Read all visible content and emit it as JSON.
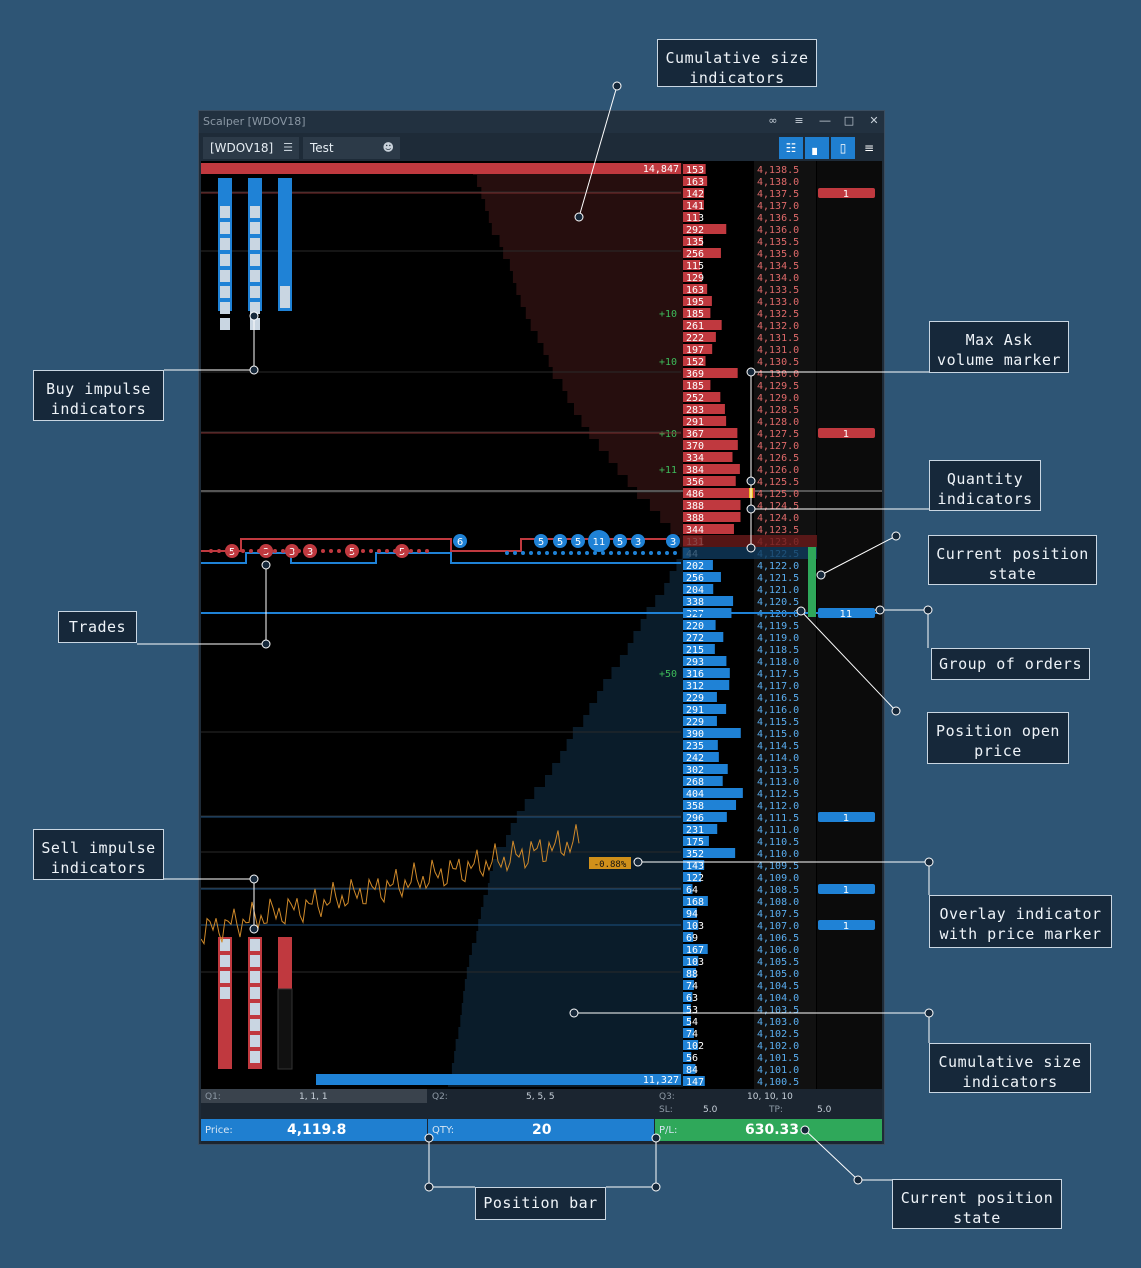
{
  "window": {
    "title": "Scalper [WDOV18]",
    "symbol": "[WDOV18]",
    "account": "Test",
    "icons": [
      "link-icon",
      "menu-icon",
      "minimize-icon",
      "maximize-icon",
      "close-icon"
    ],
    "toolbar_icons": [
      "dom-view-icon",
      "cluster-icon",
      "mouse-icon",
      "settings-menu-icon"
    ]
  },
  "ladder": {
    "top_cumulative": "14,847",
    "bottom_cumulative": "11,327",
    "position_group_label": "11",
    "overlay_marker": "-0.88%",
    "ask_rows": [
      {
        "price": "4,138.5",
        "vol": "153"
      },
      {
        "price": "4,138.0",
        "vol": "163"
      },
      {
        "price": "4,137.5",
        "vol": "142"
      },
      {
        "price": "4,137.0",
        "vol": "141"
      },
      {
        "price": "4,136.5",
        "vol": "113"
      },
      {
        "price": "4,136.0",
        "vol": "292"
      },
      {
        "price": "4,135.5",
        "vol": "135"
      },
      {
        "price": "4,135.0",
        "vol": "256"
      },
      {
        "price": "4,134.5",
        "vol": "115"
      },
      {
        "price": "4,134.0",
        "vol": "129"
      },
      {
        "price": "4,133.5",
        "vol": "163"
      },
      {
        "price": "4,133.0",
        "vol": "195"
      },
      {
        "price": "4,132.5",
        "vol": "185"
      },
      {
        "price": "4,132.0",
        "vol": "261"
      },
      {
        "price": "4,131.5",
        "vol": "222"
      },
      {
        "price": "4,131.0",
        "vol": "197"
      },
      {
        "price": "4,130.5",
        "vol": "152"
      },
      {
        "price": "4,130.0",
        "vol": "369"
      },
      {
        "price": "4,129.5",
        "vol": "185"
      },
      {
        "price": "4,129.0",
        "vol": "252"
      },
      {
        "price": "4,128.5",
        "vol": "283"
      },
      {
        "price": "4,128.0",
        "vol": "291"
      },
      {
        "price": "4,127.5",
        "vol": "367"
      },
      {
        "price": "4,127.0",
        "vol": "370"
      },
      {
        "price": "4,126.5",
        "vol": "334"
      },
      {
        "price": "4,126.0",
        "vol": "384"
      },
      {
        "price": "4,125.5",
        "vol": "356"
      },
      {
        "price": "4,125.0",
        "vol": "486"
      },
      {
        "price": "4,124.5",
        "vol": "388"
      },
      {
        "price": "4,124.0",
        "vol": "388"
      },
      {
        "price": "4,123.5",
        "vol": "344"
      },
      {
        "price": "4,123.0",
        "vol": "131"
      }
    ],
    "bid_rows": [
      {
        "price": "4,122.5",
        "vol": "44"
      },
      {
        "price": "4,122.0",
        "vol": "202"
      },
      {
        "price": "4,121.5",
        "vol": "256"
      },
      {
        "price": "4,121.0",
        "vol": "204"
      },
      {
        "price": "4,120.5",
        "vol": "338"
      },
      {
        "price": "4,120.0",
        "vol": "327"
      },
      {
        "price": "4,119.5",
        "vol": "220"
      },
      {
        "price": "4,119.0",
        "vol": "272"
      },
      {
        "price": "4,118.5",
        "vol": "215"
      },
      {
        "price": "4,118.0",
        "vol": "293"
      },
      {
        "price": "4,117.5",
        "vol": "316"
      },
      {
        "price": "4,117.0",
        "vol": "312"
      },
      {
        "price": "4,116.5",
        "vol": "229"
      },
      {
        "price": "4,116.0",
        "vol": "291"
      },
      {
        "price": "4,115.5",
        "vol": "229"
      },
      {
        "price": "4,115.0",
        "vol": "390"
      },
      {
        "price": "4,114.5",
        "vol": "235"
      },
      {
        "price": "4,114.0",
        "vol": "242"
      },
      {
        "price": "4,113.5",
        "vol": "302"
      },
      {
        "price": "4,113.0",
        "vol": "268"
      },
      {
        "price": "4,112.5",
        "vol": "404"
      },
      {
        "price": "4,112.0",
        "vol": "358"
      },
      {
        "price": "4,111.5",
        "vol": "296"
      },
      {
        "price": "4,111.0",
        "vol": "231"
      },
      {
        "price": "4,110.5",
        "vol": "175"
      },
      {
        "price": "4,110.0",
        "vol": "352"
      },
      {
        "price": "4,109.5",
        "vol": "143"
      },
      {
        "price": "4,109.0",
        "vol": "122"
      },
      {
        "price": "4,108.5",
        "vol": "64"
      },
      {
        "price": "4,108.0",
        "vol": "168"
      },
      {
        "price": "4,107.5",
        "vol": "94"
      },
      {
        "price": "4,107.0",
        "vol": "103"
      },
      {
        "price": "4,106.5",
        "vol": "69"
      },
      {
        "price": "4,106.0",
        "vol": "167"
      },
      {
        "price": "4,105.5",
        "vol": "103"
      },
      {
        "price": "4,105.0",
        "vol": "88"
      },
      {
        "price": "4,104.5",
        "vol": "74"
      },
      {
        "price": "4,104.0",
        "vol": "63"
      },
      {
        "price": "4,103.5",
        "vol": "53"
      },
      {
        "price": "4,103.0",
        "vol": "54"
      },
      {
        "price": "4,102.5",
        "vol": "74"
      },
      {
        "price": "4,102.0",
        "vol": "102"
      },
      {
        "price": "4,101.5",
        "vol": "56"
      },
      {
        "price": "4,101.0",
        "vol": "84"
      },
      {
        "price": "4,100.5",
        "vol": "147"
      }
    ],
    "deltas": [
      {
        "price": "4,132.5",
        "text": "+10"
      },
      {
        "price": "4,130.5",
        "text": "+10"
      },
      {
        "price": "4,127.5",
        "text": "+10"
      },
      {
        "price": "4,126.0",
        "text": "+11"
      },
      {
        "price": "4,117.5",
        "text": "+50"
      }
    ],
    "orders": [
      {
        "price": "4,137.5",
        "qty": "1",
        "side": "sell"
      },
      {
        "price": "4,127.5",
        "qty": "1",
        "side": "sell"
      },
      {
        "price": "4,111.5",
        "qty": "1",
        "side": "buy"
      },
      {
        "price": "4,108.5",
        "qty": "1",
        "side": "buy"
      },
      {
        "price": "4,107.0",
        "qty": "1",
        "side": "buy"
      }
    ],
    "trades": [
      {
        "label": "5",
        "side": "sell"
      },
      {
        "label": "3",
        "side": "sell"
      },
      {
        "label": "3",
        "side": "sell"
      },
      {
        "label": "3",
        "side": "sell"
      },
      {
        "label": "5",
        "side": "sell"
      },
      {
        "label": "5",
        "side": "sell"
      },
      {
        "label": "6",
        "side": "buy"
      },
      {
        "label": "5",
        "side": "buy"
      },
      {
        "label": "5",
        "side": "buy"
      },
      {
        "label": "5",
        "side": "buy"
      },
      {
        "label": "11",
        "side": "buy"
      },
      {
        "label": "5",
        "side": "buy"
      },
      {
        "label": "3",
        "side": "buy"
      },
      {
        "label": "3",
        "side": "buy"
      }
    ]
  },
  "bottom": {
    "q1_label": "Q1:",
    "q1_value": "1, 1, 1",
    "q2_label": "Q2:",
    "q2_value": "5, 5, 5",
    "q3_label": "Q3:",
    "q3_value": "10, 10, 10",
    "sl_label": "SL:",
    "sl_value": "5.0",
    "tp_label": "TP:",
    "tp_value": "5.0",
    "price_label": "Price:",
    "price_value": "4,119.8",
    "qty_label": "QTY:",
    "qty_value": "20",
    "pl_label": "P/L:",
    "pl_value": "630.33"
  },
  "callouts": {
    "cum_top": "Cumulative size\nindicators",
    "max_ask": "Max Ask\nvolume marker",
    "buy_impulse": "Buy impulse\nindicators",
    "quantity": "Quantity\nindicators",
    "cur_pos_1": "Current position\nstate",
    "trades": "Trades",
    "group_orders": "Group of orders",
    "pos_open": "Position open\nprice",
    "sell_impulse": "Sell impulse\nindicators",
    "overlay": "Overlay indicator\nwith price marker",
    "cum_bottom": "Cumulative size\nindicators",
    "position_bar": "Position bar",
    "cur_pos_2": "Current position\nstate"
  },
  "colors": {
    "ask": "#c0393f",
    "bid": "#1f82d6",
    "profit": "#2fa85a",
    "accent": "#f0a020",
    "background": "#2e5575"
  }
}
